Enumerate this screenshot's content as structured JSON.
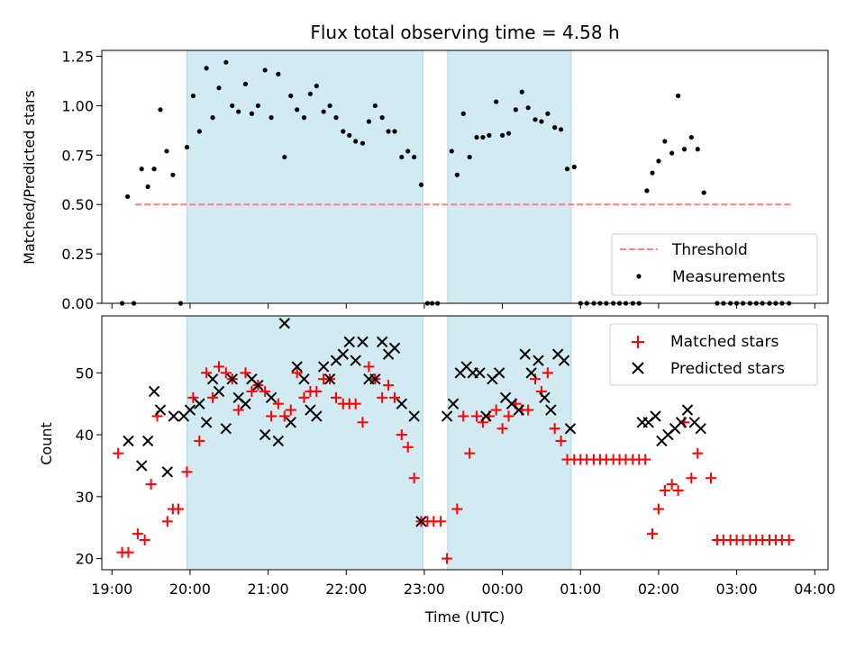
{
  "chart_data": [
    {
      "type": "scatter",
      "title": "Flux total observing time = 4.58 h",
      "xlabel": "",
      "ylabel": "Matched/Predicted stars",
      "ylim": [
        0,
        1.28
      ],
      "yticks": [
        "0.00",
        "0.25",
        "0.50",
        "0.75",
        "1.00",
        "1.25"
      ],
      "ytick_values": [
        0,
        0.25,
        0.5,
        0.75,
        1.0,
        1.25
      ],
      "xlim_hours": [
        18.87,
        28.17
      ],
      "shaded_regions_hours": [
        [
          19.96,
          22.98
        ],
        [
          23.3,
          24.88
        ]
      ],
      "shade_color": "#add8e6",
      "threshold": {
        "name": "Threshold",
        "value": 0.5,
        "x_range_hours": [
          19.3,
          27.7
        ],
        "color": "#ff7f7f"
      },
      "measurements": {
        "name": "Measurements",
        "color": "#000000",
        "x_hours": [
          19.13,
          19.2,
          19.28,
          19.38,
          19.46,
          19.54,
          19.62,
          19.7,
          19.78,
          19.88,
          19.96,
          20.04,
          20.12,
          20.21,
          20.29,
          20.37,
          20.46,
          20.54,
          20.62,
          20.71,
          20.79,
          20.87,
          20.96,
          21.04,
          21.13,
          21.21,
          21.29,
          21.37,
          21.46,
          21.54,
          21.62,
          21.71,
          21.79,
          21.87,
          21.96,
          22.04,
          22.12,
          22.21,
          22.29,
          22.37,
          22.46,
          22.54,
          22.62,
          22.71,
          22.79,
          22.87,
          22.96,
          23.04,
          23.1,
          23.17,
          23.35,
          23.42,
          23.5,
          23.58,
          23.67,
          23.75,
          23.83,
          23.92,
          24.0,
          24.08,
          24.17,
          24.25,
          24.33,
          24.42,
          24.5,
          24.58,
          24.67,
          24.75,
          24.83,
          24.92,
          25.0,
          25.08,
          25.17,
          25.25,
          25.33,
          25.42,
          25.5,
          25.58,
          25.67,
          25.75,
          25.85,
          25.92,
          26.0,
          26.08,
          26.17,
          26.25,
          26.33,
          26.42,
          26.5,
          26.58,
          26.75,
          26.83,
          26.92,
          27.0,
          27.08,
          27.17,
          27.25,
          27.33,
          27.42,
          27.5,
          27.58,
          27.67
        ],
        "y": [
          0.0,
          0.54,
          0.0,
          0.68,
          0.59,
          0.68,
          0.98,
          0.77,
          0.65,
          0.0,
          0.79,
          1.05,
          0.87,
          1.19,
          0.94,
          1.09,
          1.22,
          1.0,
          0.97,
          1.11,
          0.96,
          1.0,
          1.18,
          0.94,
          1.16,
          0.74,
          1.05,
          0.98,
          0.94,
          1.06,
          1.1,
          0.97,
          1.0,
          0.94,
          0.87,
          0.85,
          0.82,
          0.81,
          0.92,
          1.0,
          0.94,
          0.87,
          0.87,
          0.74,
          0.77,
          0.74,
          0.6,
          0.0,
          0.0,
          0.0,
          0.77,
          0.65,
          0.96,
          0.74,
          0.84,
          0.84,
          0.85,
          1.02,
          0.85,
          0.86,
          0.98,
          1.07,
          0.99,
          0.93,
          0.92,
          0.96,
          0.89,
          0.88,
          0.68,
          0.69,
          0.0,
          0.0,
          0.0,
          0.0,
          0.0,
          0.0,
          0.0,
          0.0,
          0.0,
          0.0,
          0.57,
          0.66,
          0.72,
          0.82,
          0.76,
          1.05,
          0.78,
          0.84,
          0.78,
          0.56,
          0.0,
          0.0,
          0.0,
          0.0,
          0.0,
          0.0,
          0.0,
          0.0,
          0.0,
          0.0,
          0.0,
          0.0
        ]
      },
      "legend": {
        "placement": "lower-right",
        "entries": [
          "Threshold",
          "Measurements"
        ]
      }
    },
    {
      "type": "scatter",
      "title": "",
      "xlabel": "Time (UTC)",
      "ylabel": "Count",
      "ylim": [
        18.2,
        59.2
      ],
      "yticks": [
        "20",
        "30",
        "40",
        "50"
      ],
      "ytick_values": [
        20,
        30,
        40,
        50
      ],
      "xlim_hours": [
        18.87,
        28.17
      ],
      "xticks": [
        "19:00",
        "20:00",
        "21:00",
        "22:00",
        "23:00",
        "00:00",
        "01:00",
        "02:00",
        "03:00",
        "04:00"
      ],
      "xtick_values_hours": [
        19,
        20,
        21,
        22,
        23,
        24,
        25,
        26,
        27,
        28
      ],
      "shaded_regions_hours": [
        [
          19.96,
          22.98
        ],
        [
          23.3,
          24.88
        ]
      ],
      "shade_color": "#add8e6",
      "series": [
        {
          "name": "Matched stars",
          "marker": "+",
          "color": "#ff0000",
          "x_hours": [
            19.08,
            19.13,
            19.21,
            19.33,
            19.42,
            19.5,
            19.58,
            19.71,
            19.78,
            19.85,
            19.96,
            20.04,
            20.12,
            20.21,
            20.29,
            20.37,
            20.46,
            20.54,
            20.62,
            20.71,
            20.79,
            20.87,
            20.96,
            21.04,
            21.13,
            21.21,
            21.29,
            21.37,
            21.46,
            21.54,
            21.62,
            21.71,
            21.79,
            21.87,
            21.96,
            22.04,
            22.12,
            22.21,
            22.29,
            22.37,
            22.46,
            22.54,
            22.62,
            22.71,
            22.79,
            22.87,
            22.96,
            23.04,
            23.12,
            23.21,
            23.29,
            23.42,
            23.5,
            23.58,
            23.67,
            23.75,
            23.83,
            23.92,
            24.0,
            24.08,
            24.17,
            24.25,
            24.33,
            24.42,
            24.5,
            24.58,
            24.67,
            24.75,
            24.83,
            24.92,
            25.0,
            25.08,
            25.17,
            25.25,
            25.33,
            25.42,
            25.5,
            25.58,
            25.67,
            25.75,
            25.83,
            25.92,
            26.0,
            26.08,
            26.17,
            26.25,
            26.33,
            26.42,
            26.5,
            26.67,
            26.75,
            26.83,
            26.92,
            27.0,
            27.08,
            27.17,
            27.25,
            27.33,
            27.42,
            27.5,
            27.58,
            27.67
          ],
          "y": [
            37,
            21,
            21,
            24,
            23,
            32,
            43,
            26,
            28,
            28,
            34,
            46,
            39,
            50,
            46,
            51,
            50,
            49,
            44,
            50,
            47,
            48,
            47,
            43,
            45,
            43,
            44,
            50,
            46,
            47,
            47,
            49,
            49,
            46,
            45,
            45,
            45,
            42,
            51,
            49,
            46,
            48,
            46,
            40,
            38,
            33,
            26,
            26,
            26,
            26,
            20,
            28,
            43,
            37,
            43,
            42,
            43,
            44,
            41,
            43,
            45,
            44,
            44,
            49,
            47,
            50,
            41,
            39,
            36,
            36,
            36,
            36,
            36,
            36,
            36,
            36,
            36,
            36,
            36,
            36,
            36,
            24,
            28,
            31,
            32,
            31,
            42,
            33,
            37,
            33,
            23,
            23,
            23,
            23,
            23,
            23,
            23,
            23,
            23,
            23,
            23,
            23
          ]
        },
        {
          "name": "Predicted stars",
          "marker": "x",
          "color": "#000000",
          "x_hours": [
            19.21,
            19.38,
            19.46,
            19.54,
            19.62,
            19.71,
            19.79,
            19.92,
            20.0,
            20.12,
            20.21,
            20.29,
            20.37,
            20.46,
            20.54,
            20.62,
            20.71,
            20.79,
            20.87,
            20.96,
            21.04,
            21.13,
            21.21,
            21.29,
            21.37,
            21.46,
            21.54,
            21.62,
            21.71,
            21.79,
            21.87,
            21.96,
            22.04,
            22.12,
            22.21,
            22.29,
            22.37,
            22.46,
            22.54,
            22.62,
            22.71,
            22.87,
            22.96,
            23.29,
            23.37,
            23.46,
            23.54,
            23.62,
            23.71,
            23.79,
            23.87,
            23.96,
            24.04,
            24.12,
            24.21,
            24.29,
            24.37,
            24.46,
            24.54,
            24.62,
            24.71,
            24.79,
            24.87,
            25.79,
            25.87,
            25.96,
            26.04,
            26.12,
            26.21,
            26.29,
            26.37,
            26.46,
            26.54
          ],
          "y": [
            39,
            35,
            39,
            47,
            44,
            34,
            43,
            43,
            44,
            45,
            42,
            49,
            47,
            41,
            49,
            46,
            45,
            49,
            48,
            40,
            46,
            39,
            58,
            42,
            51,
            49,
            44,
            43,
            51,
            49,
            52,
            53,
            55,
            52,
            55,
            49,
            49,
            55,
            53,
            54,
            45,
            43,
            26,
            43,
            45,
            50,
            51,
            50,
            50,
            43,
            49,
            50,
            46,
            45,
            44,
            53,
            50,
            52,
            46,
            44,
            53,
            52,
            41,
            42,
            42,
            43,
            39,
            40,
            41,
            42,
            44,
            42,
            41
          ]
        }
      ],
      "legend": {
        "placement": "upper-right",
        "entries": [
          "Matched stars",
          "Predicted stars"
        ]
      }
    }
  ]
}
